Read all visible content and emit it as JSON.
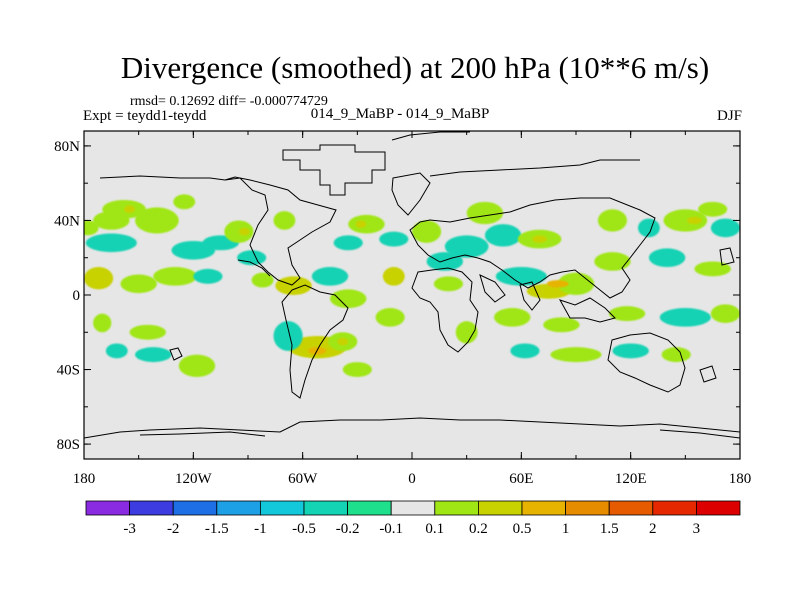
{
  "chart_data": {
    "type": "heatmap",
    "title": "Divergence (smoothed) at 200 hPa (10**6 m/s)",
    "stats": "rmsd= 0.12692  diff= -0.000774729",
    "left_label": "Expt = teydd1-teydd",
    "center_label": "014_9_MaBP - 014_9_MaBP",
    "right_label": "DJF",
    "x_ticks": [
      {
        "value": -180,
        "label": "180"
      },
      {
        "value": -120,
        "label": "120W"
      },
      {
        "value": -60,
        "label": "60W"
      },
      {
        "value": 0,
        "label": "0"
      },
      {
        "value": 60,
        "label": "60E"
      },
      {
        "value": 120,
        "label": "120E"
      },
      {
        "value": 180,
        "label": "180"
      }
    ],
    "y_ticks": [
      {
        "value": 80,
        "label": "80N"
      },
      {
        "value": 40,
        "label": "40N"
      },
      {
        "value": 0,
        "label": "0"
      },
      {
        "value": -40,
        "label": "40S"
      },
      {
        "value": -80,
        "label": "80S"
      }
    ],
    "xlim": [
      -180,
      180
    ],
    "ylim": [
      -88,
      88
    ],
    "colorbar": {
      "labels": [
        "-3",
        "-2",
        "-1.5",
        "-1",
        "-0.5",
        "-0.2",
        "-0.1",
        "0.1",
        "0.2",
        "0.5",
        "1",
        "1.5",
        "2",
        "3"
      ],
      "colors": [
        "#8a2be2",
        "#3c3ce0",
        "#1e6ee6",
        "#1ea0e6",
        "#14c8dc",
        "#14d2b4",
        "#1ee08c",
        "#e6e6e6",
        "#a0e614",
        "#c8d200",
        "#e6b400",
        "#e68c00",
        "#e65a00",
        "#e62800",
        "#dc0000"
      ]
    },
    "blobs": [
      {
        "lon": -158,
        "lat": 46,
        "rlon": 12,
        "rlat": 5,
        "level": 8
      },
      {
        "lon": -165,
        "lat": 40,
        "rlon": 10,
        "rlat": 5,
        "level": 8
      },
      {
        "lon": -140,
        "lat": 40,
        "rlon": 12,
        "rlat": 7,
        "level": 8
      },
      {
        "lon": -125,
        "lat": 50,
        "rlon": 6,
        "rlat": 4,
        "level": 8
      },
      {
        "lon": -178,
        "lat": 36,
        "rlon": 6,
        "rlat": 4,
        "level": 8
      },
      {
        "lon": -165,
        "lat": 28,
        "rlon": 14,
        "rlat": 5,
        "level": 5
      },
      {
        "lon": -120,
        "lat": 24,
        "rlon": 12,
        "rlat": 5,
        "level": 5
      },
      {
        "lon": -105,
        "lat": 28,
        "rlon": 10,
        "rlat": 4,
        "level": 5
      },
      {
        "lon": -172,
        "lat": 9,
        "rlon": 8,
        "rlat": 6,
        "level": 9
      },
      {
        "lon": -150,
        "lat": 6,
        "rlon": 10,
        "rlat": 5,
        "level": 8
      },
      {
        "lon": -130,
        "lat": 10,
        "rlon": 12,
        "rlat": 5,
        "level": 8
      },
      {
        "lon": -112,
        "lat": 10,
        "rlon": 8,
        "rlat": 4,
        "level": 5
      },
      {
        "lon": -170,
        "lat": -15,
        "rlon": 5,
        "rlat": 5,
        "level": 8
      },
      {
        "lon": -145,
        "lat": -20,
        "rlon": 10,
        "rlat": 4,
        "level": 8
      },
      {
        "lon": -162,
        "lat": -30,
        "rlon": 6,
        "rlat": 4,
        "level": 5
      },
      {
        "lon": -142,
        "lat": -32,
        "rlon": 10,
        "rlat": 4,
        "level": 5
      },
      {
        "lon": -118,
        "lat": -38,
        "rlon": 10,
        "rlat": 6,
        "level": 8
      },
      {
        "lon": -95,
        "lat": 34,
        "rlon": 8,
        "rlat": 6,
        "level": 8
      },
      {
        "lon": -70,
        "lat": 40,
        "rlon": 6,
        "rlat": 5,
        "level": 8
      },
      {
        "lon": -88,
        "lat": 20,
        "rlon": 8,
        "rlat": 4,
        "level": 5
      },
      {
        "lon": -82,
        "lat": 8,
        "rlon": 6,
        "rlat": 4,
        "level": 8
      },
      {
        "lon": -65,
        "lat": 5,
        "rlon": 10,
        "rlat": 5,
        "level": 9
      },
      {
        "lon": -45,
        "lat": 10,
        "rlon": 10,
        "rlat": 5,
        "level": 5
      },
      {
        "lon": -35,
        "lat": -2,
        "rlon": 10,
        "rlat": 5,
        "level": 8
      },
      {
        "lon": -52,
        "lat": -28,
        "rlon": 16,
        "rlat": 6,
        "level": 9
      },
      {
        "lon": -38,
        "lat": -25,
        "rlon": 8,
        "rlat": 5,
        "level": 8
      },
      {
        "lon": -68,
        "lat": -22,
        "rlon": 8,
        "rlat": 8,
        "level": 5
      },
      {
        "lon": -30,
        "lat": -40,
        "rlon": 8,
        "rlat": 4,
        "level": 8
      },
      {
        "lon": -12,
        "lat": -12,
        "rlon": 8,
        "rlat": 5,
        "level": 8
      },
      {
        "lon": -10,
        "lat": 10,
        "rlon": 6,
        "rlat": 5,
        "level": 9
      },
      {
        "lon": -25,
        "lat": 38,
        "rlon": 10,
        "rlat": 5,
        "level": 8
      },
      {
        "lon": -35,
        "lat": 28,
        "rlon": 8,
        "rlat": 4,
        "level": 5
      },
      {
        "lon": -10,
        "lat": 30,
        "rlon": 8,
        "rlat": 4,
        "level": 5
      },
      {
        "lon": 8,
        "lat": 34,
        "rlon": 8,
        "rlat": 6,
        "level": 8
      },
      {
        "lon": 18,
        "lat": 18,
        "rlon": 10,
        "rlat": 5,
        "level": 5
      },
      {
        "lon": 20,
        "lat": 6,
        "rlon": 8,
        "rlat": 4,
        "level": 8
      },
      {
        "lon": 30,
        "lat": -20,
        "rlon": 6,
        "rlat": 6,
        "level": 8
      },
      {
        "lon": 30,
        "lat": 26,
        "rlon": 12,
        "rlat": 6,
        "level": 5
      },
      {
        "lon": 40,
        "lat": 44,
        "rlon": 10,
        "rlat": 6,
        "level": 8
      },
      {
        "lon": 50,
        "lat": 32,
        "rlon": 10,
        "rlat": 6,
        "level": 5
      },
      {
        "lon": 70,
        "lat": 30,
        "rlon": 12,
        "rlat": 5,
        "level": 8
      },
      {
        "lon": 60,
        "lat": 10,
        "rlon": 14,
        "rlat": 5,
        "level": 5
      },
      {
        "lon": 75,
        "lat": 2,
        "rlon": 12,
        "rlat": 4,
        "level": 9
      },
      {
        "lon": 90,
        "lat": 6,
        "rlon": 10,
        "rlat": 6,
        "level": 8
      },
      {
        "lon": 55,
        "lat": -12,
        "rlon": 10,
        "rlat": 5,
        "level": 8
      },
      {
        "lon": 82,
        "lat": -16,
        "rlon": 10,
        "rlat": 4,
        "level": 8
      },
      {
        "lon": 62,
        "lat": -30,
        "rlon": 8,
        "rlat": 4,
        "level": 5
      },
      {
        "lon": 90,
        "lat": -32,
        "rlon": 14,
        "rlat": 4,
        "level": 8
      },
      {
        "lon": 120,
        "lat": -30,
        "rlon": 10,
        "rlat": 4,
        "level": 5
      },
      {
        "lon": 145,
        "lat": -32,
        "rlon": 8,
        "rlat": 4,
        "level": 8
      },
      {
        "lon": 110,
        "lat": 40,
        "rlon": 8,
        "rlat": 6,
        "level": 8
      },
      {
        "lon": 130,
        "lat": 36,
        "rlon": 6,
        "rlat": 5,
        "level": 5
      },
      {
        "lon": 150,
        "lat": 40,
        "rlon": 12,
        "rlat": 6,
        "level": 8
      },
      {
        "lon": 172,
        "lat": 36,
        "rlon": 8,
        "rlat": 5,
        "level": 5
      },
      {
        "lon": 165,
        "lat": 46,
        "rlon": 8,
        "rlat": 4,
        "level": 8
      },
      {
        "lon": 140,
        "lat": 20,
        "rlon": 10,
        "rlat": 5,
        "level": 5
      },
      {
        "lon": 110,
        "lat": 18,
        "rlon": 10,
        "rlat": 5,
        "level": 8
      },
      {
        "lon": 165,
        "lat": 14,
        "rlon": 10,
        "rlat": 4,
        "level": 8
      },
      {
        "lon": 150,
        "lat": -12,
        "rlon": 14,
        "rlat": 5,
        "level": 5
      },
      {
        "lon": 118,
        "lat": -10,
        "rlon": 10,
        "rlat": 4,
        "level": 8
      },
      {
        "lon": 172,
        "lat": -10,
        "rlon": 8,
        "rlat": 5,
        "level": 8
      }
    ],
    "hot_spots": [
      {
        "lon": -92,
        "lat": 34,
        "rlon": 3,
        "rlat": 2,
        "level": 9
      },
      {
        "lon": -52,
        "lat": -30,
        "rlon": 5,
        "rlat": 2,
        "level": 10
      },
      {
        "lon": -38,
        "lat": -25,
        "rlon": 3,
        "rlat": 2,
        "level": 9
      },
      {
        "lon": -28,
        "lat": 38,
        "rlon": 3,
        "rlat": 2,
        "level": 9
      },
      {
        "lon": 70,
        "lat": 30,
        "rlon": 4,
        "rlat": 2,
        "level": 9
      },
      {
        "lon": 80,
        "lat": 6,
        "rlon": 6,
        "rlat": 2,
        "level": 10
      },
      {
        "lon": 155,
        "lat": 40,
        "rlon": 4,
        "rlat": 2,
        "level": 9
      },
      {
        "lon": -155,
        "lat": 46,
        "rlon": 3,
        "rlat": 2,
        "level": 9
      }
    ]
  }
}
